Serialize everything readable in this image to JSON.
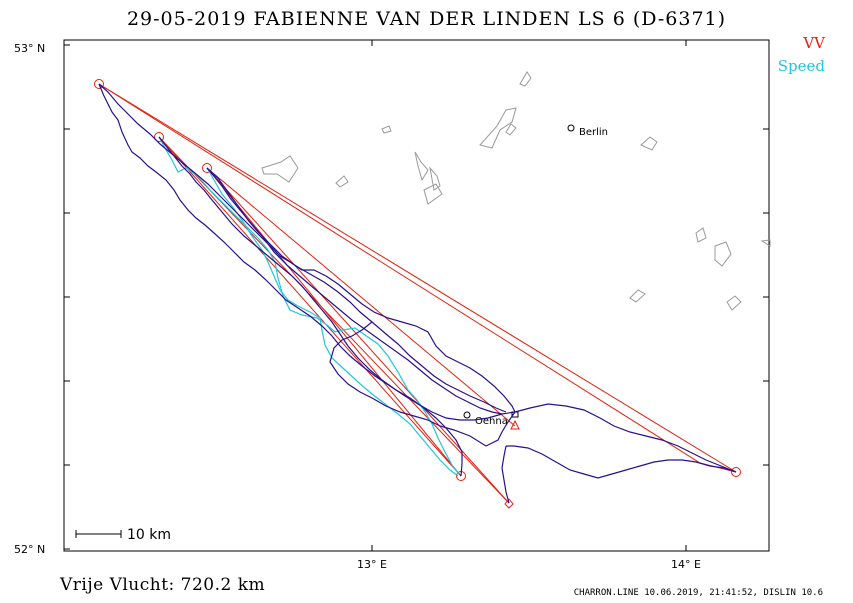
{
  "header": {
    "title": "29-05-2019    FABIENNE VAN DER LINDEN    LS 6 (D-6371)"
  },
  "legend": [
    {
      "label": "VV",
      "color": "#e4200f"
    },
    {
      "label": "Speed",
      "color": "#1fc8dd"
    }
  ],
  "axes": {
    "y_top_label": "53° N",
    "y_bottom_label": "52° N",
    "x_labels": [
      "13° E",
      "14° E"
    ]
  },
  "places": {
    "berlin": "Berlin",
    "oehna": "Oehna"
  },
  "scale_bar": {
    "label": "10  km"
  },
  "footer": {
    "distance": "Vrije Vlucht:  720.2 km",
    "credit": "CHARRON.LINE 10.06.2019, 21:41:52, DISLIN 10.6"
  },
  "colors": {
    "track": "#2a108c",
    "task": "#e4200f",
    "speed": "#1fc8dd",
    "terrain": "#9a9a9a"
  }
}
